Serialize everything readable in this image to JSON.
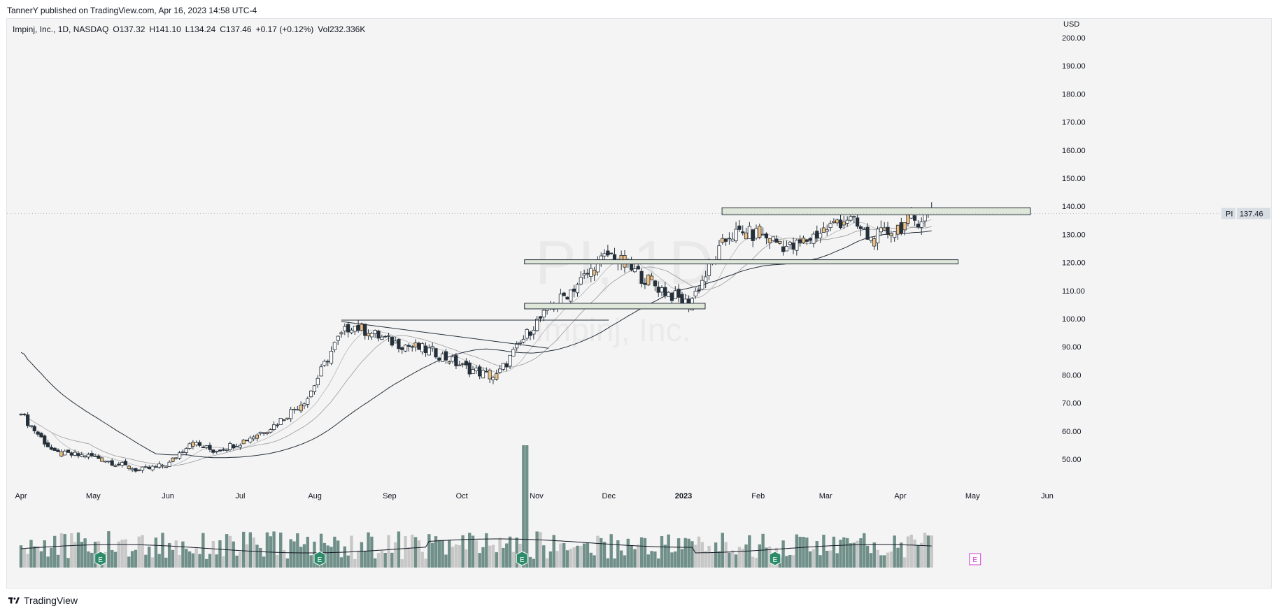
{
  "header": {
    "publisher_line": "TannerY published on TradingView.com, Apr 16, 2023 14:58 UTC-4"
  },
  "legend": {
    "symbol": "Impinj, Inc., 1D, NASDAQ",
    "open": "O137.32",
    "high": "H141.10",
    "low": "L134.24",
    "close": "C137.46",
    "change": "+0.17 (+0.12%)",
    "volume": "Vol232.336K"
  },
  "watermark": {
    "line1": "PI, 1D",
    "line2": "Impinj, Inc."
  },
  "price_label": {
    "ticker": "PI",
    "value": "137.46"
  },
  "footer": {
    "brand": "TradingView"
  },
  "colors": {
    "up": "#ffffff",
    "down": "#26303a",
    "highlight": "#f0c080",
    "volume": "#6f8f88",
    "volume_light": "#c7c7c7",
    "zone": "#dfe6da",
    "price_tag": "#d8dde3"
  },
  "chart_data": {
    "type": "candlestick",
    "currency_label": "USD",
    "y_ticks": [
      "200.00",
      "190.00",
      "180.00",
      "170.00",
      "160.00",
      "150.00",
      "140.00",
      "130.00",
      "120.00",
      "110.00",
      "100.00",
      "90.00",
      "80.00",
      "70.00",
      "60.00",
      "50.00"
    ],
    "y_tick_values": [
      200,
      190,
      180,
      170,
      160,
      150,
      140,
      130,
      120,
      110,
      100,
      90,
      80,
      70,
      60,
      50
    ],
    "x_ticks": [
      "Apr",
      "May",
      "Jun",
      "Jul",
      "Aug",
      "Sep",
      "Oct",
      "Nov",
      "Dec",
      "2023",
      "Feb",
      "Mar",
      "Apr",
      "May",
      "Jun"
    ],
    "x_tick_dates": [
      "2022-04-01",
      "2022-05-01",
      "2022-06-01",
      "2022-07-01",
      "2022-08-01",
      "2022-09-01",
      "2022-10-01",
      "2022-11-01",
      "2022-12-01",
      "2023-01-01",
      "2023-02-01",
      "2023-03-01",
      "2023-04-01",
      "2023-05-01",
      "2023-06-01"
    ],
    "ylim": [
      40,
      205
    ],
    "last_price": 137.46,
    "closes_approx": [
      {
        "date": "2022-04-01",
        "close": 66
      },
      {
        "date": "2022-04-15",
        "close": 52
      },
      {
        "date": "2022-05-01",
        "close": 51
      },
      {
        "date": "2022-05-20",
        "close": 46
      },
      {
        "date": "2022-06-01",
        "close": 48
      },
      {
        "date": "2022-06-10",
        "close": 56
      },
      {
        "date": "2022-06-20",
        "close": 53
      },
      {
        "date": "2022-07-01",
        "close": 56
      },
      {
        "date": "2022-07-15",
        "close": 62
      },
      {
        "date": "2022-07-29",
        "close": 72
      },
      {
        "date": "2022-08-10",
        "close": 92
      },
      {
        "date": "2022-08-16",
        "close": 98
      },
      {
        "date": "2022-09-01",
        "close": 92
      },
      {
        "date": "2022-09-20",
        "close": 88
      },
      {
        "date": "2022-10-01",
        "close": 83
      },
      {
        "date": "2022-10-15",
        "close": 79
      },
      {
        "date": "2022-10-31",
        "close": 98
      },
      {
        "date": "2022-11-15",
        "close": 110
      },
      {
        "date": "2022-12-01",
        "close": 123
      },
      {
        "date": "2022-12-20",
        "close": 112
      },
      {
        "date": "2023-01-03",
        "close": 105
      },
      {
        "date": "2023-01-20",
        "close": 130
      },
      {
        "date": "2023-02-01",
        "close": 130
      },
      {
        "date": "2023-02-15",
        "close": 125
      },
      {
        "date": "2023-03-01",
        "close": 132
      },
      {
        "date": "2023-03-10",
        "close": 136
      },
      {
        "date": "2023-03-20",
        "close": 128
      },
      {
        "date": "2023-04-01",
        "close": 133
      },
      {
        "date": "2023-04-14",
        "close": 137.46
      }
    ],
    "zones": [
      {
        "start": "2023-01-17",
        "end": "2023-05-25",
        "low": 137,
        "high": 139.5
      },
      {
        "start": "2022-10-27",
        "end": "2023-04-25",
        "low": 119.5,
        "high": 121
      },
      {
        "start": "2022-10-27",
        "end": "2023-01-10",
        "low": 103.5,
        "high": 105.5
      }
    ],
    "trendlines": [
      {
        "from": {
          "date": "2022-08-12",
          "price": 99.5
        },
        "to": {
          "date": "2022-12-01",
          "price": 99.5
        }
      },
      {
        "from": {
          "date": "2022-08-12",
          "price": 99
        },
        "to": {
          "date": "2022-11-06",
          "price": 89.5
        }
      }
    ],
    "earnings_markers": [
      {
        "date": "2022-05-04"
      },
      {
        "date": "2022-08-03"
      },
      {
        "date": "2022-10-26"
      },
      {
        "date": "2023-02-08"
      },
      {
        "date": "2023-05-02",
        "upcoming": true
      }
    ],
    "grid": false,
    "legend_position": "top-left"
  }
}
